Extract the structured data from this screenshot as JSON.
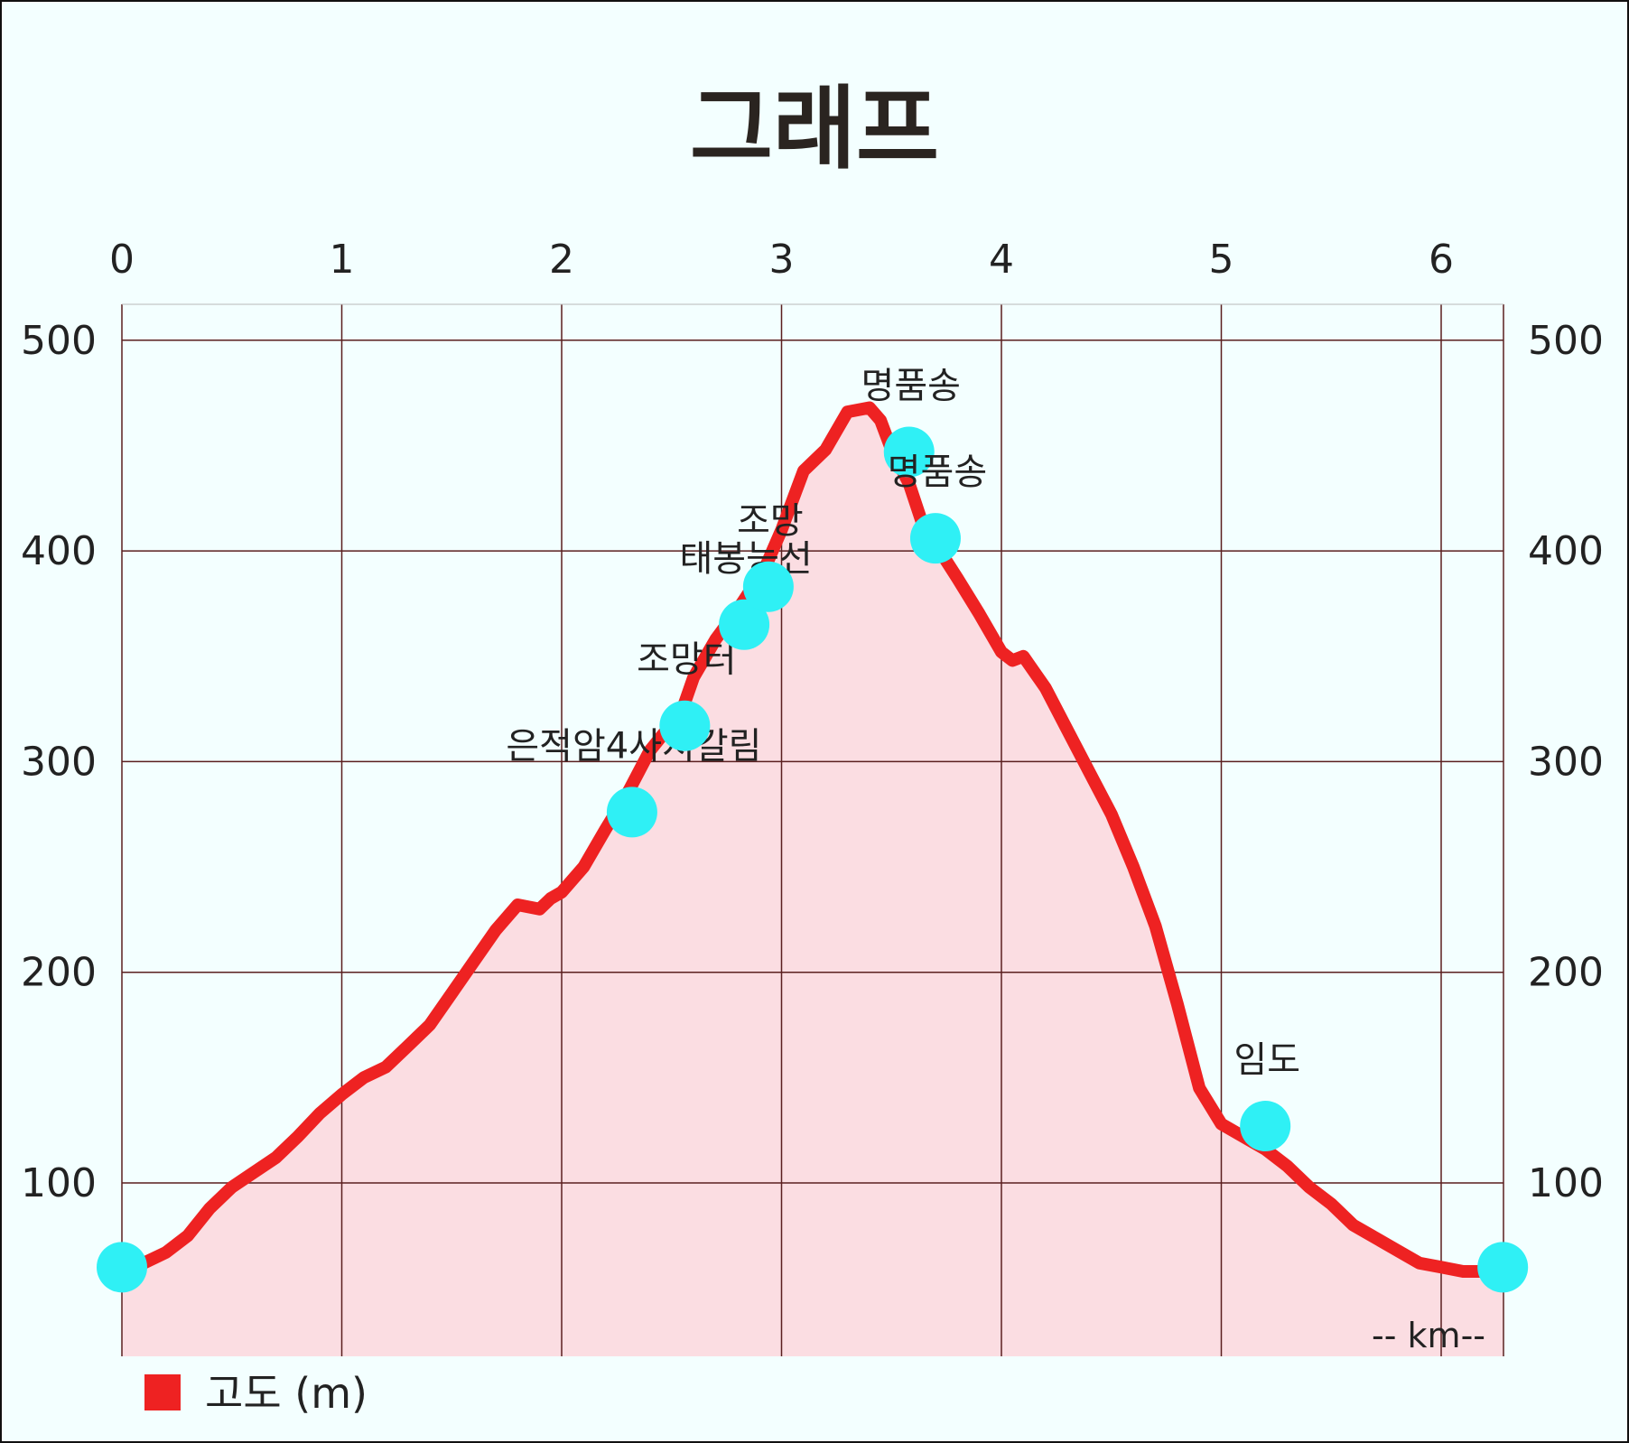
{
  "chart_data": {
    "type": "area",
    "title": "그래프",
    "x_unit_label": "-- km--",
    "legend": [
      {
        "name": "고도 (m)",
        "color": "#ee2222"
      }
    ],
    "xlim": [
      0,
      6.28
    ],
    "ylim": [
      50,
      510
    ],
    "x_ticks": [
      0,
      1,
      2,
      3,
      4,
      5,
      6
    ],
    "y_ticks": [
      100,
      200,
      300,
      400,
      500
    ],
    "grid": true,
    "colors": {
      "line": "#ee2222",
      "fill": "#fbdde2",
      "marker": "#2ff0f5",
      "grid": "#5a1f1f"
    },
    "series": [
      {
        "name": "고도 (m)",
        "x": [
          0,
          0.1,
          0.2,
          0.3,
          0.4,
          0.5,
          0.6,
          0.7,
          0.8,
          0.9,
          1.0,
          1.1,
          1.2,
          1.3,
          1.4,
          1.5,
          1.6,
          1.7,
          1.8,
          1.9,
          1.95,
          2.0,
          2.1,
          2.2,
          2.3,
          2.4,
          2.5,
          2.55,
          2.6,
          2.7,
          2.8,
          2.85,
          2.9,
          3.0,
          3.1,
          3.2,
          3.3,
          3.4,
          3.45,
          3.5,
          3.58,
          3.65,
          3.72,
          3.8,
          3.9,
          4.0,
          4.05,
          4.1,
          4.2,
          4.3,
          4.4,
          4.5,
          4.6,
          4.7,
          4.8,
          4.9,
          5.0,
          5.1,
          5.2,
          5.3,
          5.4,
          5.5,
          5.6,
          5.7,
          5.8,
          5.9,
          6.0,
          6.1,
          6.2,
          6.28
        ],
        "y": [
          60,
          62,
          67,
          75,
          88,
          98,
          105,
          112,
          122,
          133,
          142,
          150,
          155,
          165,
          175,
          190,
          205,
          220,
          232,
          230,
          235,
          238,
          250,
          268,
          285,
          305,
          318,
          325,
          340,
          358,
          372,
          380,
          386,
          410,
          438,
          448,
          466,
          468,
          462,
          448,
          432,
          410,
          400,
          387,
          370,
          352,
          348,
          350,
          335,
          315,
          295,
          275,
          250,
          222,
          185,
          145,
          128,
          122,
          116,
          108,
          98,
          90,
          80,
          74,
          68,
          62,
          60,
          58,
          58,
          60
        ]
      }
    ],
    "markers": [
      {
        "x": 0.0,
        "y": 60,
        "label": ""
      },
      {
        "x": 2.32,
        "y": 276,
        "label": "은적암4사지갈림"
      },
      {
        "x": 2.56,
        "y": 317,
        "label": "조망터"
      },
      {
        "x": 2.83,
        "y": 365,
        "label": "태봉능선"
      },
      {
        "x": 2.94,
        "y": 383,
        "label": "조망"
      },
      {
        "x": 3.58,
        "y": 447,
        "label": "명품송"
      },
      {
        "x": 3.7,
        "y": 406,
        "label": "명품송"
      },
      {
        "x": 5.2,
        "y": 127,
        "label": "임도"
      },
      {
        "x": 6.28,
        "y": 60,
        "label": ""
      }
    ]
  }
}
